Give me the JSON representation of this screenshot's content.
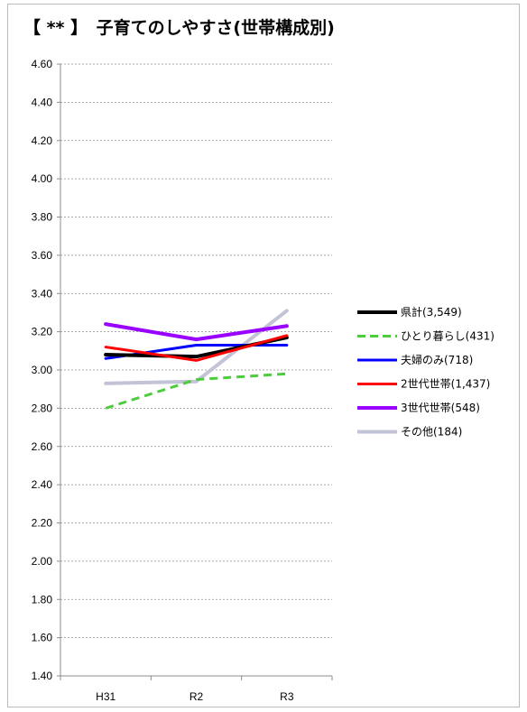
{
  "chart_data": {
    "type": "line",
    "title": "【 ** 】　子育てのしやすさ(世帯構成別)",
    "categories": [
      "H31",
      "R2",
      "R3"
    ],
    "ylim": [
      1.4,
      4.6
    ],
    "yticks": [
      "4.60",
      "4.40",
      "4.20",
      "4.00",
      "3.80",
      "3.60",
      "3.40",
      "3.20",
      "3.00",
      "2.80",
      "2.60",
      "2.40",
      "2.20",
      "2.00",
      "1.80",
      "1.60",
      "1.40"
    ],
    "grid": true,
    "legend_position": "right",
    "series": [
      {
        "name": "県計(3,549)",
        "values": [
          3.08,
          3.07,
          3.17
        ],
        "color": "#000000",
        "dash": false
      },
      {
        "name": "ひとり暮らし(431)",
        "values": [
          2.8,
          2.95,
          2.98
        ],
        "color": "#4dcc3d",
        "dash": true
      },
      {
        "name": "夫婦のみ(718)",
        "values": [
          3.06,
          3.13,
          3.13
        ],
        "color": "#0000ff",
        "dash": false
      },
      {
        "name": "2世代世帯(1,437)",
        "values": [
          3.12,
          3.05,
          3.18
        ],
        "color": "#ff0000",
        "dash": false
      },
      {
        "name": "3世代世帯(548)",
        "values": [
          3.24,
          3.16,
          3.23
        ],
        "color": "#9a00ff",
        "dash": false
      },
      {
        "name": "その他(184)",
        "values": [
          2.93,
          2.94,
          3.31
        ],
        "color": "#c3c3d8",
        "dash": false
      }
    ]
  }
}
